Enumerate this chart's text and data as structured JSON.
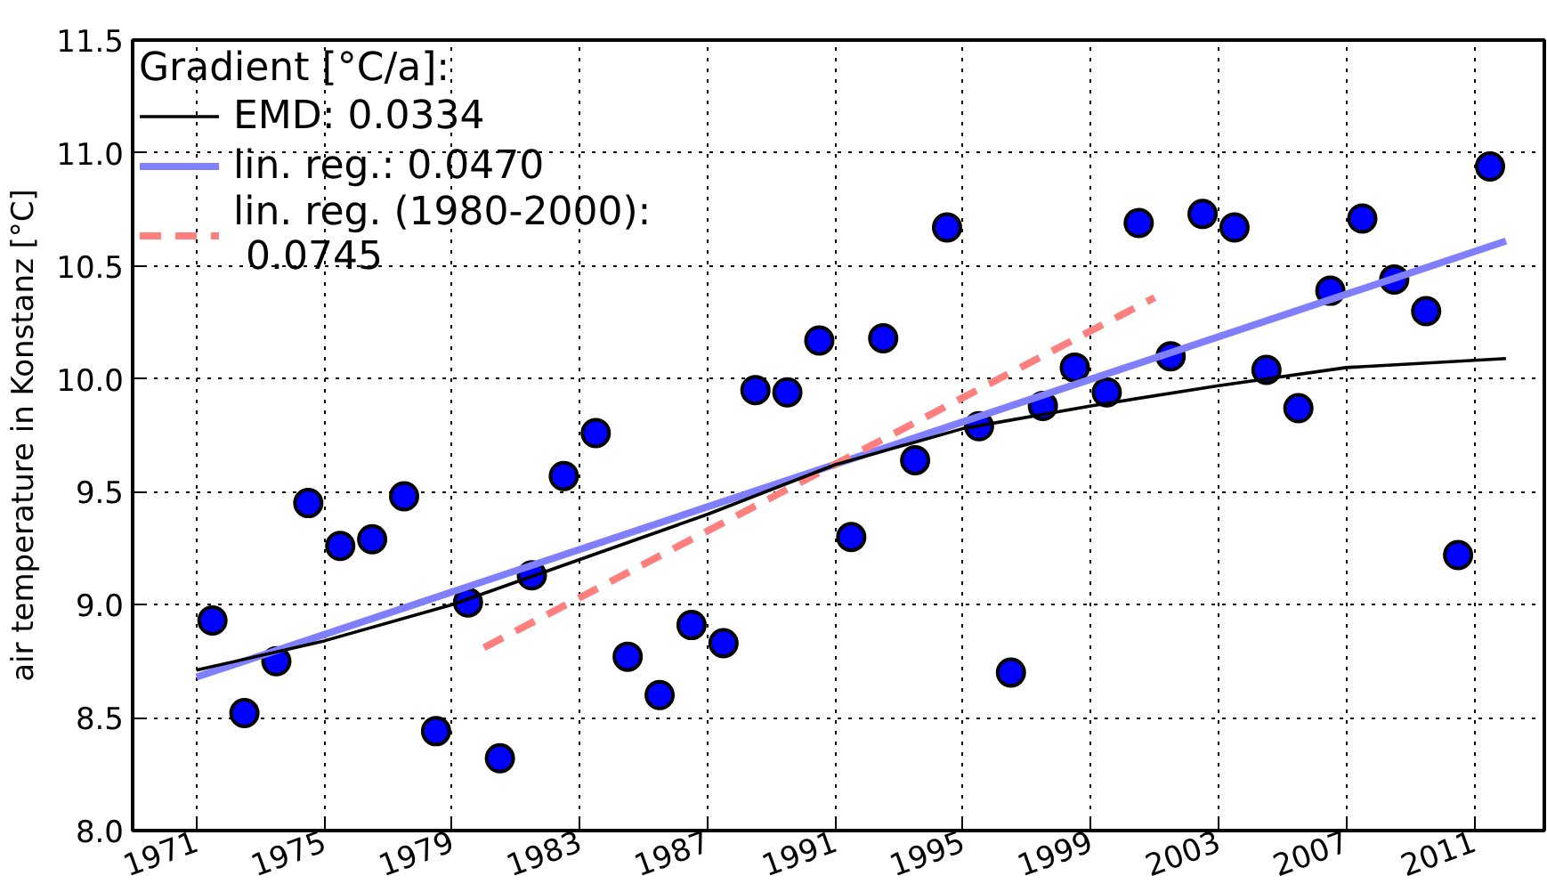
{
  "chart_data": {
    "type": "scatter",
    "ylabel": "air temperature in Konstanz [°C]",
    "legend_title": "Gradient [°C/a]:",
    "xlim": [
      1969,
      2013.2
    ],
    "ylim": [
      8.0,
      11.5
    ],
    "xticks": [
      1971,
      1975,
      1979,
      1983,
      1987,
      1991,
      1995,
      1999,
      2003,
      2007,
      2011
    ],
    "yticks": [
      {
        "value": 8.0,
        "label": "8.0"
      },
      {
        "value": 8.5,
        "label": "8.5"
      },
      {
        "value": 9.0,
        "label": "9.0"
      },
      {
        "value": 9.5,
        "label": "9.5"
      },
      {
        "value": 10.0,
        "label": "10.0"
      },
      {
        "value": 10.5,
        "label": "10.5"
      },
      {
        "value": 11.0,
        "label": "11.0"
      },
      {
        "value": 11.5,
        "label": "11.5"
      }
    ],
    "grid": true,
    "legend": "top left",
    "series": [
      {
        "marker": "circle",
        "color": "#0000ff",
        "x": [
          1971.5,
          1972.5,
          1973.5,
          1974.5,
          1975.5,
          1976.5,
          1977.5,
          1978.5,
          1979.5,
          1980.5,
          1981.5,
          1982.5,
          1983.5,
          1984.5,
          1985.5,
          1986.5,
          1987.5,
          1988.5,
          1989.5,
          1990.5,
          1991.5,
          1992.5,
          1993.5,
          1994.5,
          1995.5,
          1996.5,
          1997.5,
          1998.5,
          1999.5,
          2000.5,
          2001.5,
          2002.5,
          2003.5,
          2004.5,
          2005.5,
          2006.5,
          2007.5,
          2008.5,
          2009.5,
          2010.5,
          2011.5
        ],
        "values": [
          8.93,
          8.52,
          8.75,
          9.45,
          9.26,
          9.29,
          9.48,
          8.44,
          9.01,
          8.32,
          9.13,
          9.57,
          9.76,
          8.77,
          8.6,
          8.91,
          8.83,
          9.95,
          9.94,
          10.17,
          9.3,
          10.18,
          9.64,
          10.67,
          9.79,
          8.7,
          9.88,
          10.05,
          9.94,
          10.69,
          10.1,
          10.73,
          10.67,
          10.04,
          9.87,
          10.39,
          10.71,
          10.44,
          10.3,
          9.22,
          10.94
        ]
      },
      {
        "type": "line",
        "name": "EMD: 0.0334",
        "color": "#000000",
        "line_style": "solid",
        "x": [
          1971,
          1975,
          1979,
          1983,
          1987,
          1991,
          1995,
          1999,
          2003,
          2007,
          2012
        ],
        "values": [
          8.71,
          8.84,
          9.0,
          9.2,
          9.4,
          9.62,
          9.78,
          9.88,
          9.97,
          10.05,
          10.09
        ]
      },
      {
        "type": "line",
        "name": "lin. reg.: 0.0470",
        "color": "#7f7fff",
        "line_style": "solid",
        "x": [
          1971,
          2012
        ],
        "values": [
          8.68,
          10.61
        ]
      },
      {
        "type": "line",
        "name": "lin. reg. (1980-2000):\n 0.0745",
        "color": "#ff7f7f",
        "line_style": "dashed",
        "x": [
          1980,
          2001
        ],
        "values": [
          8.81,
          10.36
        ]
      }
    ]
  }
}
